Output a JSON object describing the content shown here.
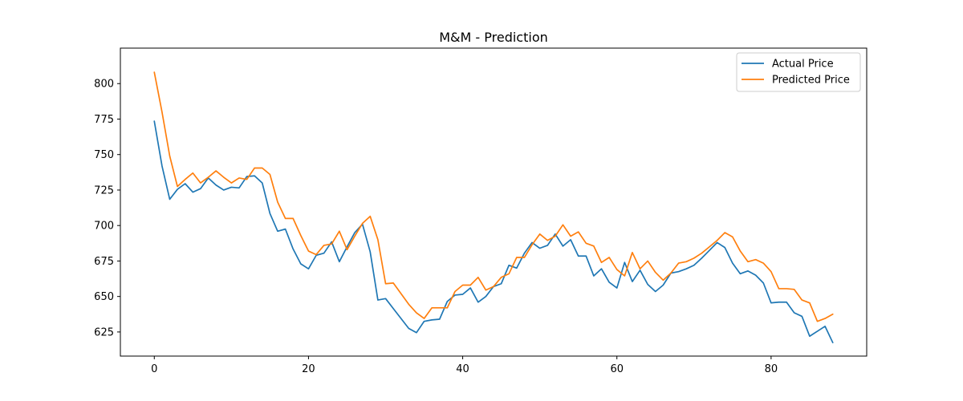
{
  "chart_data": {
    "type": "line",
    "title": "M&M - Prediction",
    "xlabel": "",
    "ylabel": "",
    "xlim": [
      -4.4,
      92.4
    ],
    "ylim": [
      608,
      825
    ],
    "x_ticks": [
      0,
      20,
      40,
      60,
      80
    ],
    "y_ticks": [
      625,
      650,
      675,
      700,
      725,
      750,
      775,
      800
    ],
    "grid": false,
    "legend_position": "top-right",
    "series": [
      {
        "name": "Actual Price",
        "color": "#1f77b4",
        "values": [
          773.5,
          742,
          718.5,
          725.5,
          729.5,
          723.5,
          726,
          733.5,
          728.5,
          725,
          727,
          726.5,
          734.5,
          735,
          730,
          708.5,
          696,
          697.5,
          683.5,
          673,
          669.5,
          679,
          680.5,
          688.5,
          674.5,
          685,
          695,
          701,
          681.5,
          647.5,
          648.5,
          641.5,
          634.5,
          627.5,
          624.5,
          632.5,
          633.5,
          634,
          646.5,
          651,
          651.5,
          656,
          646,
          650,
          657,
          659,
          672,
          670,
          680.5,
          688,
          684,
          686,
          694,
          685.5,
          690,
          678.5,
          678.5,
          664.5,
          669.5,
          660,
          656,
          674,
          660.5,
          668.5,
          658.5,
          653.5,
          658,
          666.5,
          667.5,
          669.5,
          672,
          677,
          682.5,
          688,
          684.5,
          673.5,
          666,
          668,
          665,
          659.5,
          645.5,
          646,
          646,
          638.5,
          636,
          622,
          625.5,
          629,
          617.5
        ]
      },
      {
        "name": "Predicted Price",
        "color": "#ff7f0e",
        "values": [
          808,
          780,
          749,
          727.5,
          732.5,
          737,
          730,
          734,
          738.5,
          734,
          730,
          733.5,
          732.5,
          740.5,
          740.5,
          736,
          716.5,
          705,
          705,
          693,
          682,
          679.5,
          686,
          687,
          696,
          683,
          692.5,
          701.5,
          706.5,
          690,
          659,
          659.5,
          652,
          644.5,
          638.5,
          634.5,
          642,
          642,
          642,
          653.5,
          658,
          658,
          663.5,
          654.5,
          657,
          663.5,
          666,
          677.5,
          677.5,
          686.5,
          694,
          689.5,
          692.5,
          700.5,
          692.5,
          695.5,
          687.5,
          685.5,
          674,
          677.5,
          669,
          664.5,
          681,
          669.5,
          675,
          667,
          661.5,
          666.5,
          673.5,
          674.5,
          677,
          680.5,
          685,
          689.5,
          695,
          692,
          682,
          674.5,
          676,
          673.5,
          667.5,
          655.5,
          655.5,
          655,
          647.5,
          645.5,
          632.5,
          634.5,
          637.5
        ]
      }
    ]
  }
}
